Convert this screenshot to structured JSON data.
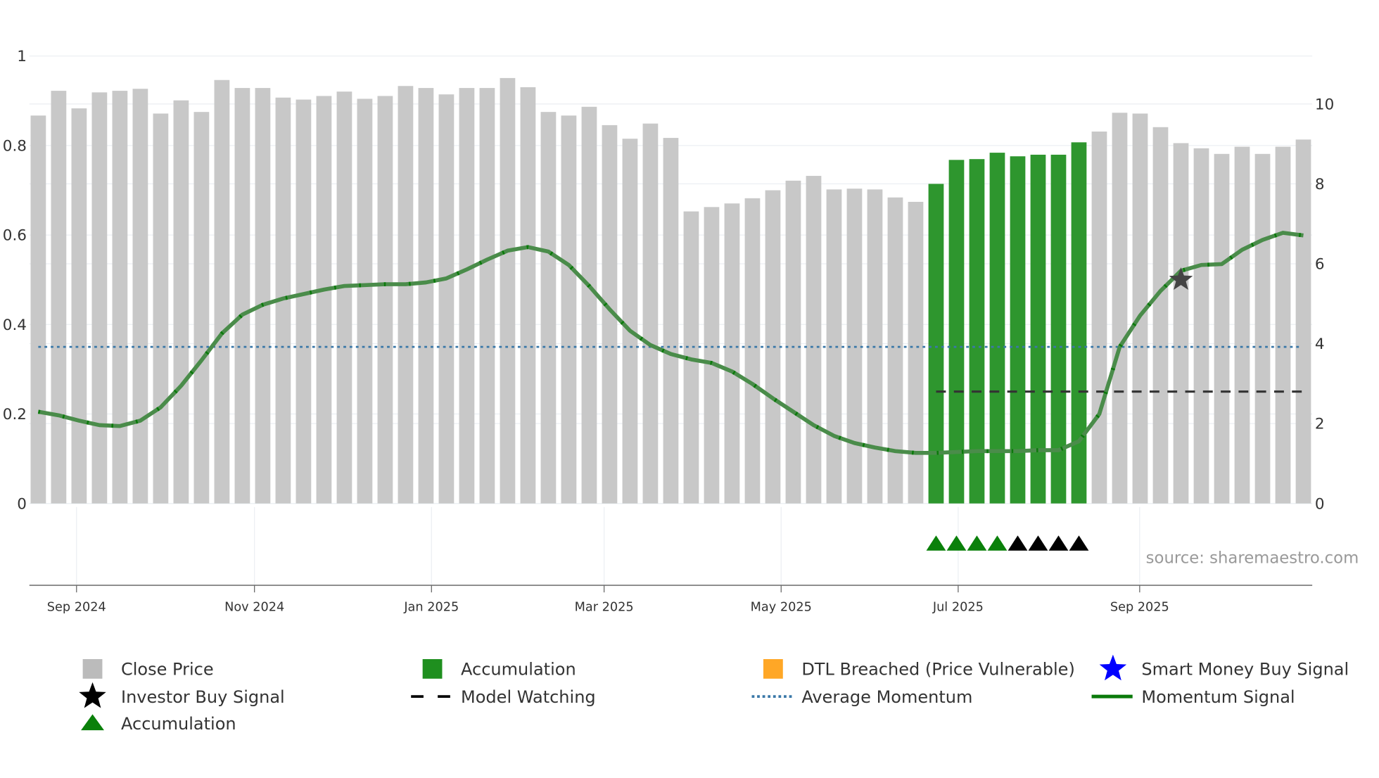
{
  "chart_data": {
    "type": "bar",
    "title": "",
    "source_label": "source: sharemaestro.com",
    "left_axis": {
      "range": [
        0,
        1
      ],
      "ticks": [
        "0",
        "0.2",
        "0.4",
        "0.6",
        "0.8",
        "1"
      ]
    },
    "right_axis": {
      "range": [
        0,
        11.2
      ],
      "ticks": [
        "0",
        "2",
        "4",
        "6",
        "8",
        "10"
      ]
    },
    "x_ticks": [
      "Sep 2024",
      "Nov 2024",
      "Jan 2025",
      "Mar 2025",
      "May 2025",
      "Jul 2025",
      "Sep 2025"
    ],
    "close_price": [
      9.71,
      10.33,
      9.89,
      10.29,
      10.33,
      10.38,
      9.76,
      10.09,
      9.8,
      10.6,
      10.4,
      10.4,
      10.16,
      10.11,
      10.2,
      10.31,
      10.13,
      10.2,
      10.45,
      10.4,
      10.24,
      10.4,
      10.4,
      10.65,
      10.42,
      9.8,
      9.71,
      9.93,
      9.47,
      9.13,
      9.51,
      9.15,
      7.31,
      7.42,
      7.51,
      7.64,
      7.84,
      8.08,
      8.2,
      7.86,
      7.88,
      7.86,
      7.66,
      7.55,
      8.0,
      8.6,
      8.62,
      8.78,
      8.69,
      8.73,
      8.73,
      9.04,
      9.31,
      9.78,
      9.76,
      9.42,
      9.02,
      8.89,
      8.75,
      8.93,
      8.75,
      8.93,
      9.11
    ],
    "accumulation_bars": [
      44,
      45,
      46,
      47,
      48,
      49,
      50,
      51
    ],
    "momentum_signal": [
      0.205,
      0.197,
      0.185,
      0.175,
      0.173,
      0.185,
      0.215,
      0.263,
      0.32,
      0.38,
      0.422,
      0.444,
      0.458,
      0.468,
      0.478,
      0.486,
      0.488,
      0.49,
      0.49,
      0.494,
      0.503,
      0.523,
      0.545,
      0.565,
      0.573,
      0.563,
      0.533,
      0.486,
      0.434,
      0.386,
      0.354,
      0.334,
      0.322,
      0.314,
      0.295,
      0.267,
      0.235,
      0.205,
      0.175,
      0.151,
      0.135,
      0.125,
      0.117,
      0.113,
      0.113,
      0.115,
      0.117,
      0.117,
      0.117,
      0.119,
      0.119,
      0.139,
      0.2,
      0.35,
      0.42,
      0.475,
      0.52,
      0.533,
      0.535,
      0.567,
      0.589,
      0.605,
      0.599
    ],
    "average_momentum": 0.35,
    "model_watching": {
      "value": 0.25,
      "from_index": 44,
      "to_index": 62
    },
    "investor_buy_signal": {
      "index": 56,
      "value": 0.5
    },
    "accumulation_markers": {
      "green": [
        44,
        45,
        46,
        47
      ],
      "black": [
        48,
        49,
        50,
        51
      ]
    },
    "colors": {
      "close": "#c8c8c8",
      "accumulation": "#2e962e",
      "momentum": "#4a8c4a",
      "avg": "#3a78a8",
      "dtl": "#ffa726",
      "smart": "#0000ff"
    },
    "legend": [
      {
        "label": "Close Price",
        "icon": "gray-square"
      },
      {
        "label": "Accumulation",
        "icon": "green-square"
      },
      {
        "label": "DTL Breached (Price Vulnerable)",
        "icon": "orange-square"
      },
      {
        "label": "Smart Money Buy Signal",
        "icon": "blue-star"
      },
      {
        "label": "Investor Buy Signal",
        "icon": "black-star"
      },
      {
        "label": "Model Watching",
        "icon": "dashed-line"
      },
      {
        "label": "Average Momentum",
        "icon": "dotted-line"
      },
      {
        "label": "Momentum Signal",
        "icon": "green-line"
      },
      {
        "label": "Accumulation",
        "icon": "green-triangle"
      }
    ]
  }
}
